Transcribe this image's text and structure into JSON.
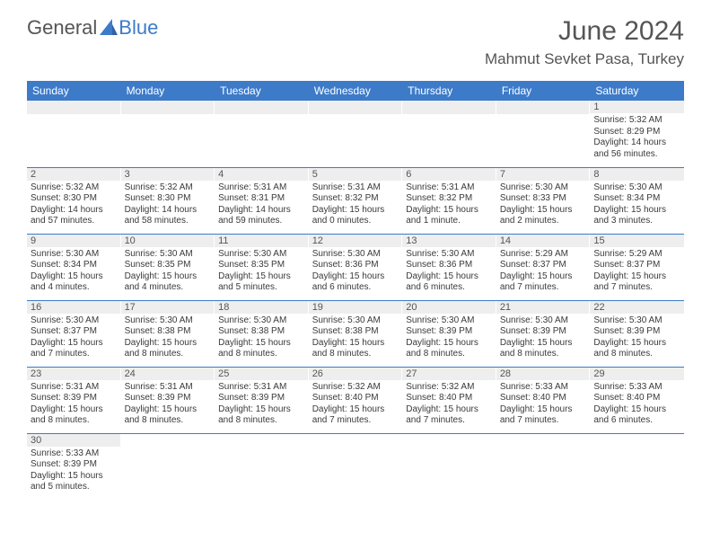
{
  "logo": {
    "text1": "General",
    "text2": "Blue",
    "sail_color": "#3d7bc9"
  },
  "header": {
    "title": "June 2024",
    "location": "Mahmut Sevket Pasa, Turkey"
  },
  "colors": {
    "header_bg": "#3d7bc9",
    "header_text": "#ffffff",
    "daynum_bg": "#eeeeee",
    "text_dark": "#555555",
    "cell_text": "#3a3a3a",
    "row_border": "#3d7bc9"
  },
  "columns": [
    "Sunday",
    "Monday",
    "Tuesday",
    "Wednesday",
    "Thursday",
    "Friday",
    "Saturday"
  ],
  "weeks": [
    [
      null,
      null,
      null,
      null,
      null,
      null,
      {
        "n": "1",
        "sr": "5:32 AM",
        "ss": "8:29 PM",
        "dl": "14 hours and 56 minutes."
      }
    ],
    [
      {
        "n": "2",
        "sr": "5:32 AM",
        "ss": "8:30 PM",
        "dl": "14 hours and 57 minutes."
      },
      {
        "n": "3",
        "sr": "5:32 AM",
        "ss": "8:30 PM",
        "dl": "14 hours and 58 minutes."
      },
      {
        "n": "4",
        "sr": "5:31 AM",
        "ss": "8:31 PM",
        "dl": "14 hours and 59 minutes."
      },
      {
        "n": "5",
        "sr": "5:31 AM",
        "ss": "8:32 PM",
        "dl": "15 hours and 0 minutes."
      },
      {
        "n": "6",
        "sr": "5:31 AM",
        "ss": "8:32 PM",
        "dl": "15 hours and 1 minute."
      },
      {
        "n": "7",
        "sr": "5:30 AM",
        "ss": "8:33 PM",
        "dl": "15 hours and 2 minutes."
      },
      {
        "n": "8",
        "sr": "5:30 AM",
        "ss": "8:34 PM",
        "dl": "15 hours and 3 minutes."
      }
    ],
    [
      {
        "n": "9",
        "sr": "5:30 AM",
        "ss": "8:34 PM",
        "dl": "15 hours and 4 minutes."
      },
      {
        "n": "10",
        "sr": "5:30 AM",
        "ss": "8:35 PM",
        "dl": "15 hours and 4 minutes."
      },
      {
        "n": "11",
        "sr": "5:30 AM",
        "ss": "8:35 PM",
        "dl": "15 hours and 5 minutes."
      },
      {
        "n": "12",
        "sr": "5:30 AM",
        "ss": "8:36 PM",
        "dl": "15 hours and 6 minutes."
      },
      {
        "n": "13",
        "sr": "5:30 AM",
        "ss": "8:36 PM",
        "dl": "15 hours and 6 minutes."
      },
      {
        "n": "14",
        "sr": "5:29 AM",
        "ss": "8:37 PM",
        "dl": "15 hours and 7 minutes."
      },
      {
        "n": "15",
        "sr": "5:29 AM",
        "ss": "8:37 PM",
        "dl": "15 hours and 7 minutes."
      }
    ],
    [
      {
        "n": "16",
        "sr": "5:30 AM",
        "ss": "8:37 PM",
        "dl": "15 hours and 7 minutes."
      },
      {
        "n": "17",
        "sr": "5:30 AM",
        "ss": "8:38 PM",
        "dl": "15 hours and 8 minutes."
      },
      {
        "n": "18",
        "sr": "5:30 AM",
        "ss": "8:38 PM",
        "dl": "15 hours and 8 minutes."
      },
      {
        "n": "19",
        "sr": "5:30 AM",
        "ss": "8:38 PM",
        "dl": "15 hours and 8 minutes."
      },
      {
        "n": "20",
        "sr": "5:30 AM",
        "ss": "8:39 PM",
        "dl": "15 hours and 8 minutes."
      },
      {
        "n": "21",
        "sr": "5:30 AM",
        "ss": "8:39 PM",
        "dl": "15 hours and 8 minutes."
      },
      {
        "n": "22",
        "sr": "5:30 AM",
        "ss": "8:39 PM",
        "dl": "15 hours and 8 minutes."
      }
    ],
    [
      {
        "n": "23",
        "sr": "5:31 AM",
        "ss": "8:39 PM",
        "dl": "15 hours and 8 minutes."
      },
      {
        "n": "24",
        "sr": "5:31 AM",
        "ss": "8:39 PM",
        "dl": "15 hours and 8 minutes."
      },
      {
        "n": "25",
        "sr": "5:31 AM",
        "ss": "8:39 PM",
        "dl": "15 hours and 8 minutes."
      },
      {
        "n": "26",
        "sr": "5:32 AM",
        "ss": "8:40 PM",
        "dl": "15 hours and 7 minutes."
      },
      {
        "n": "27",
        "sr": "5:32 AM",
        "ss": "8:40 PM",
        "dl": "15 hours and 7 minutes."
      },
      {
        "n": "28",
        "sr": "5:33 AM",
        "ss": "8:40 PM",
        "dl": "15 hours and 7 minutes."
      },
      {
        "n": "29",
        "sr": "5:33 AM",
        "ss": "8:40 PM",
        "dl": "15 hours and 6 minutes."
      }
    ],
    [
      {
        "n": "30",
        "sr": "5:33 AM",
        "ss": "8:39 PM",
        "dl": "15 hours and 5 minutes."
      },
      null,
      null,
      null,
      null,
      null,
      null
    ]
  ],
  "labels": {
    "sunrise": "Sunrise:",
    "sunset": "Sunset:",
    "daylight": "Daylight:"
  }
}
